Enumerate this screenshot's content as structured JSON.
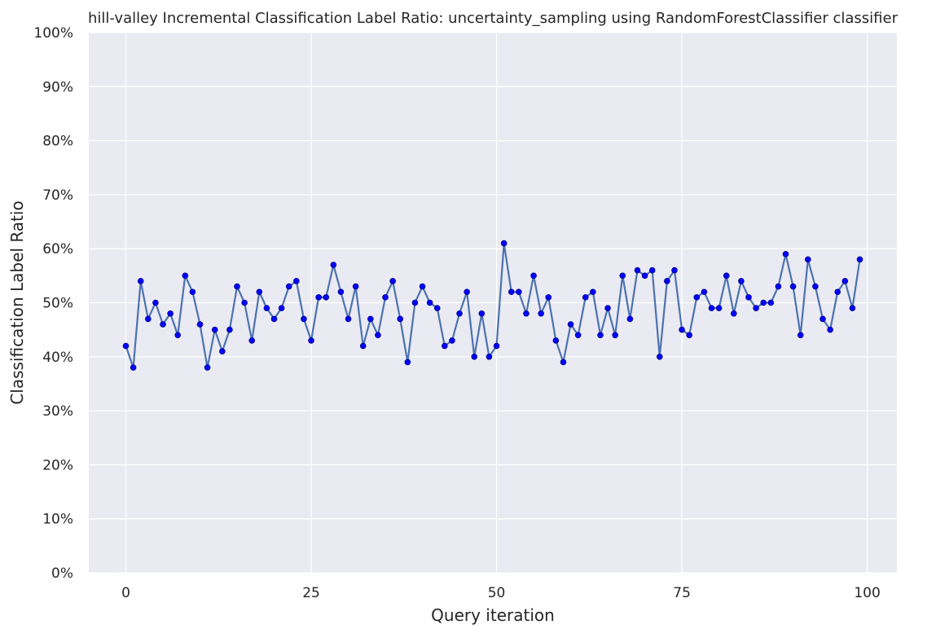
{
  "chart_data": {
    "type": "line",
    "title": "hill-valley Incremental Classification Label Ratio: uncertainty_sampling using RandomForestClassifier classifier",
    "xlabel": "Query iteration",
    "ylabel": "Classification Label Ratio",
    "xlim": [
      -5,
      104
    ],
    "ylim": [
      0,
      1
    ],
    "x_ticks": [
      0,
      25,
      50,
      75,
      100
    ],
    "x_tick_labels": [
      "0",
      "25",
      "50",
      "75",
      "100"
    ],
    "y_ticks": [
      0,
      0.1,
      0.2,
      0.3,
      0.4,
      0.5,
      0.6,
      0.7,
      0.8,
      0.9,
      1.0
    ],
    "y_tick_labels": [
      "0%",
      "10%",
      "20%",
      "30%",
      "40%",
      "50%",
      "60%",
      "70%",
      "80%",
      "90%",
      "100%"
    ],
    "grid": true,
    "colors": {
      "background": "#eaeaf2",
      "grid": "#ffffff",
      "line": "#4c72b0",
      "marker": "#0000ff",
      "marker_edge": "#00008b"
    },
    "series": [
      {
        "x": [
          0,
          1,
          2,
          3,
          4,
          5,
          6,
          7,
          8,
          9,
          10,
          11,
          12,
          13,
          14,
          15,
          16,
          17,
          18,
          19,
          20,
          21,
          22,
          23,
          24,
          25,
          26,
          27,
          28,
          29,
          30,
          31,
          32,
          33,
          34,
          35,
          36,
          37,
          38,
          39,
          40,
          41,
          42,
          43,
          44,
          45,
          46,
          47,
          48,
          49,
          50,
          51,
          52,
          53,
          54,
          55,
          56,
          57,
          58,
          59,
          60,
          61,
          62,
          63,
          64,
          65,
          66,
          67,
          68,
          69,
          70,
          71,
          72,
          73,
          74,
          75,
          76,
          77,
          78,
          79,
          80,
          81,
          82,
          83,
          84,
          85,
          86,
          87,
          88,
          89,
          90,
          91,
          92,
          93,
          94,
          95,
          96,
          97,
          98,
          99
        ],
        "values": [
          0.42,
          0.38,
          0.54,
          0.47,
          0.5,
          0.46,
          0.48,
          0.44,
          0.55,
          0.52,
          0.46,
          0.38,
          0.45,
          0.41,
          0.45,
          0.53,
          0.5,
          0.43,
          0.52,
          0.49,
          0.47,
          0.49,
          0.53,
          0.54,
          0.47,
          0.43,
          0.51,
          0.51,
          0.57,
          0.52,
          0.47,
          0.53,
          0.42,
          0.47,
          0.44,
          0.51,
          0.54,
          0.47,
          0.39,
          0.5,
          0.53,
          0.5,
          0.49,
          0.42,
          0.43,
          0.48,
          0.52,
          0.4,
          0.48,
          0.4,
          0.42,
          0.61,
          0.52,
          0.52,
          0.48,
          0.55,
          0.48,
          0.51,
          0.43,
          0.39,
          0.46,
          0.44,
          0.51,
          0.52,
          0.44,
          0.49,
          0.44,
          0.55,
          0.47,
          0.56,
          0.55,
          0.56,
          0.4,
          0.54,
          0.56,
          0.45,
          0.44,
          0.51,
          0.52,
          0.49,
          0.49,
          0.55,
          0.48,
          0.54,
          0.51,
          0.49,
          0.5,
          0.5,
          0.53,
          0.59,
          0.53,
          0.44,
          0.58,
          0.53,
          0.47,
          0.45,
          0.52,
          0.54,
          0.49,
          0.58
        ]
      }
    ]
  }
}
